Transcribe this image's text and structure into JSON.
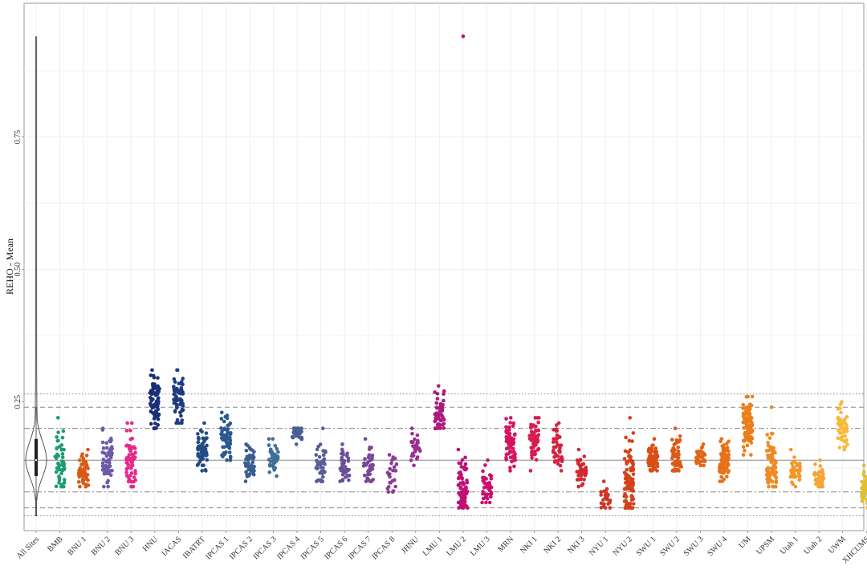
{
  "chart_data": {
    "type": "scatter",
    "subtype": "jittered strip plot with violin",
    "ylabel": "REHO - Mean",
    "xlabel": "",
    "ylim": [
      -0.05,
      0.95
    ],
    "y_ticks": [
      0.25,
      0.5,
      0.75
    ],
    "y_tick_labels": [
      "0.25",
      "0.50",
      "0.75"
    ],
    "grid": true,
    "reference_lines": [
      {
        "style": "solid",
        "value": 0.14
      },
      {
        "style": "dashdot",
        "value": 0.2
      },
      {
        "style": "dashdot",
        "value": 0.08
      },
      {
        "style": "dashed",
        "value": 0.24
      },
      {
        "style": "dashed",
        "value": 0.05
      },
      {
        "style": "dotted",
        "value": 0.265
      },
      {
        "style": "dotted",
        "value": 0.035
      }
    ],
    "violin": {
      "category": "All Sites",
      "min": 0.035,
      "q1": 0.11,
      "median": 0.14,
      "q3": 0.18,
      "max": 0.94,
      "color": "#555555"
    },
    "categories": [
      "All Sites",
      "BMB",
      "BNU 1",
      "BNU 2",
      "BNU 3",
      "HNU",
      "IACAS",
      "IBATRT",
      "IPCAS 1",
      "IPCAS 2",
      "IPCAS 3",
      "IPCAS 4",
      "IPCAS 5",
      "IPCAS 6",
      "IPCAS 7",
      "IPCAS 8",
      "JHNU",
      "LMU 1",
      "LMU 2",
      "LMU 3",
      "MRN",
      "NKI 1",
      "NKI 2",
      "NKI 3",
      "NYU 1",
      "NYU 2",
      "SWU 1",
      "SWU 2",
      "SWU 3",
      "SWU 4",
      "UM",
      "UPSM",
      "Utah 1",
      "Utah 2",
      "UWM",
      "XHCUMS"
    ],
    "series": [
      {
        "category": "BMB",
        "color": "#1b9e6e",
        "n": 50,
        "min": 0.09,
        "max": 0.22,
        "center": 0.135
      },
      {
        "category": "BNU 1",
        "color": "#d95a16",
        "n": 50,
        "min": 0.09,
        "max": 0.16,
        "center": 0.12
      },
      {
        "category": "BNU 2",
        "color": "#6e5aa8",
        "n": 60,
        "min": 0.09,
        "max": 0.2,
        "center": 0.14
      },
      {
        "category": "BNU 3",
        "color": "#e7298a",
        "n": 60,
        "min": 0.09,
        "max": 0.21,
        "center": 0.14
      },
      {
        "category": "HNU",
        "color": "#1a2f78",
        "n": 80,
        "min": 0.2,
        "max": 0.31,
        "center": 0.25
      },
      {
        "category": "IACAS",
        "color": "#1e3a80",
        "n": 60,
        "min": 0.21,
        "max": 0.31,
        "center": 0.26
      },
      {
        "category": "IBATRT",
        "color": "#234a84",
        "n": 60,
        "min": 0.12,
        "max": 0.21,
        "center": 0.16
      },
      {
        "category": "IPCAS 1",
        "color": "#2b5a90",
        "n": 60,
        "min": 0.14,
        "max": 0.23,
        "center": 0.18
      },
      {
        "category": "IPCAS 2",
        "color": "#3a5d8e",
        "n": 40,
        "min": 0.1,
        "max": 0.17,
        "center": 0.13
      },
      {
        "category": "IPCAS 3",
        "color": "#3f6e95",
        "n": 40,
        "min": 0.11,
        "max": 0.18,
        "center": 0.14
      },
      {
        "category": "IPCAS 4",
        "color": "#4d5e96",
        "n": 30,
        "min": 0.17,
        "max": 0.2,
        "center": 0.19
      },
      {
        "category": "IPCAS 5",
        "color": "#5a5c98",
        "n": 40,
        "min": 0.1,
        "max": 0.2,
        "center": 0.13
      },
      {
        "category": "IPCAS 6",
        "color": "#6a4f99",
        "n": 40,
        "min": 0.1,
        "max": 0.17,
        "center": 0.13
      },
      {
        "category": "IPCAS 7",
        "color": "#7a4697",
        "n": 40,
        "min": 0.1,
        "max": 0.18,
        "center": 0.13
      },
      {
        "category": "IPCAS 8",
        "color": "#8b3c94",
        "n": 25,
        "min": 0.08,
        "max": 0.15,
        "center": 0.11
      },
      {
        "category": "JHNU",
        "color": "#9a2f90",
        "n": 30,
        "min": 0.13,
        "max": 0.2,
        "center": 0.16
      },
      {
        "category": "LMU 1",
        "color": "#ad1a7f",
        "n": 60,
        "min": 0.2,
        "max": 0.28,
        "center": 0.23
      },
      {
        "category": "LMU 2",
        "color": "#c01075",
        "n": 70,
        "min": 0.05,
        "max": 0.16,
        "center": 0.09,
        "outliers": [
          0.94
        ]
      },
      {
        "category": "LMU 3",
        "color": "#cc0f6e",
        "n": 40,
        "min": 0.06,
        "max": 0.14,
        "center": 0.09
      },
      {
        "category": "MRN",
        "color": "#d5145f",
        "n": 60,
        "min": 0.12,
        "max": 0.22,
        "center": 0.17
      },
      {
        "category": "NKI 1",
        "color": "#d81b50",
        "n": 60,
        "min": 0.12,
        "max": 0.22,
        "center": 0.18
      },
      {
        "category": "NKI 2",
        "color": "#d6203f",
        "n": 40,
        "min": 0.12,
        "max": 0.21,
        "center": 0.16
      },
      {
        "category": "NKI 3",
        "color": "#d02a30",
        "n": 40,
        "min": 0.09,
        "max": 0.16,
        "center": 0.12
      },
      {
        "category": "NYU 1",
        "color": "#cf3524",
        "n": 30,
        "min": 0.05,
        "max": 0.1,
        "center": 0.07
      },
      {
        "category": "NYU 2",
        "color": "#d44118",
        "n": 100,
        "min": 0.05,
        "max": 0.22,
        "center": 0.1
      },
      {
        "category": "SWU 1",
        "color": "#d94e15",
        "n": 70,
        "min": 0.12,
        "max": 0.18,
        "center": 0.14
      },
      {
        "category": "SWU 2",
        "color": "#dc5a16",
        "n": 50,
        "min": 0.12,
        "max": 0.2,
        "center": 0.15
      },
      {
        "category": "SWU 3",
        "color": "#e06617",
        "n": 40,
        "min": 0.13,
        "max": 0.17,
        "center": 0.15
      },
      {
        "category": "SWU 4",
        "color": "#e57218",
        "n": 80,
        "min": 0.1,
        "max": 0.18,
        "center": 0.14
      },
      {
        "category": "UM",
        "color": "#ec7f1b",
        "n": 100,
        "min": 0.15,
        "max": 0.26,
        "center": 0.2
      },
      {
        "category": "UPSM",
        "color": "#ee8a24",
        "n": 80,
        "min": 0.09,
        "max": 0.19,
        "center": 0.13,
        "outliers": [
          0.24
        ]
      },
      {
        "category": "Utah 1",
        "color": "#f1982c",
        "n": 40,
        "min": 0.09,
        "max": 0.16,
        "center": 0.12
      },
      {
        "category": "Utah 2",
        "color": "#f4a535",
        "n": 40,
        "min": 0.09,
        "max": 0.14,
        "center": 0.11
      },
      {
        "category": "UWM",
        "color": "#f7b93e",
        "n": 50,
        "min": 0.16,
        "max": 0.25,
        "center": 0.2
      },
      {
        "category": "XHCUMS",
        "color": "#e0c030",
        "n": 60,
        "min": 0.05,
        "max": 0.13,
        "center": 0.08
      }
    ]
  }
}
